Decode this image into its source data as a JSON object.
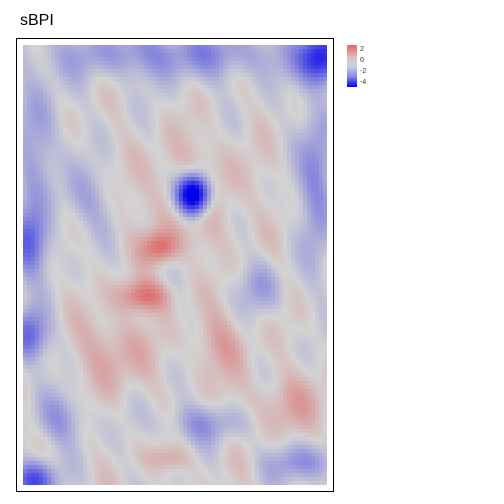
{
  "title": "sBPI",
  "legend": {
    "labels": [
      "2",
      "0",
      "-2",
      "-4"
    ]
  },
  "colors": {
    "high": "#e05c5c",
    "mid": "#d3d3d3",
    "low": "#0000ee"
  },
  "value_range": [
    -4.5,
    2.5
  ]
}
